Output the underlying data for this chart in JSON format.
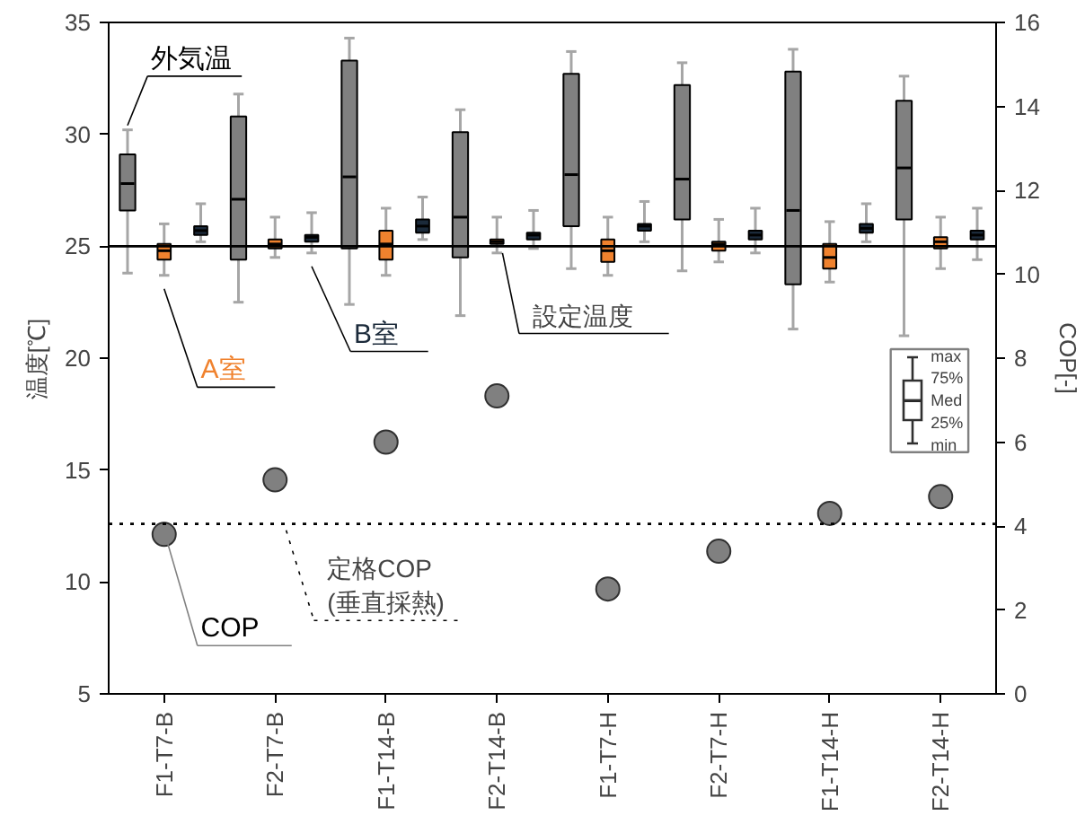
{
  "chart_data": {
    "type": "box",
    "ylabel": "温度[℃]",
    "y2label": "COP[-]",
    "categories": [
      "F1-T7-B",
      "F2-T7-B",
      "F1-T14-B",
      "F2-T14-B",
      "F1-T7-H",
      "F2-T7-H",
      "F1-T14-H",
      "F2-T14-H"
    ],
    "ylim": [
      5,
      35
    ],
    "yticks": [
      5,
      10,
      15,
      20,
      25,
      30,
      35
    ],
    "y2lim": [
      0,
      16
    ],
    "y2ticks": [
      0,
      2,
      4,
      6,
      8,
      10,
      12,
      14,
      16
    ],
    "grid": false,
    "series": [
      {
        "name": "外気温",
        "color": "#808080",
        "boxes": [
          {
            "low": 23.8,
            "q1": 26.6,
            "median": 27.8,
            "q3": 29.1,
            "high": 30.2
          },
          {
            "low": 22.5,
            "q1": 24.4,
            "median": 27.1,
            "q3": 30.8,
            "high": 31.8
          },
          {
            "low": 22.4,
            "q1": 24.9,
            "median": 28.1,
            "q3": 33.3,
            "high": 34.3
          },
          {
            "low": 21.9,
            "q1": 24.5,
            "median": 26.3,
            "q3": 30.1,
            "high": 31.1
          },
          {
            "low": 24.0,
            "q1": 25.9,
            "median": 28.2,
            "q3": 32.7,
            "high": 33.7
          },
          {
            "low": 23.9,
            "q1": 26.2,
            "median": 28.0,
            "q3": 32.2,
            "high": 33.2
          },
          {
            "low": 21.3,
            "q1": 23.3,
            "median": 26.6,
            "q3": 32.8,
            "high": 33.8
          },
          {
            "low": 21.0,
            "q1": 26.2,
            "median": 28.5,
            "q3": 31.5,
            "high": 32.6
          }
        ]
      },
      {
        "name": "A室",
        "color": "#f0822e",
        "boxes": [
          {
            "low": 23.7,
            "q1": 24.4,
            "median": 24.8,
            "q3": 25.1,
            "high": 26.0
          },
          {
            "low": 24.5,
            "q1": 24.9,
            "median": 25.1,
            "q3": 25.3,
            "high": 26.3
          },
          {
            "low": 23.7,
            "q1": 24.4,
            "median": 25.1,
            "q3": 25.7,
            "high": 26.7
          },
          {
            "low": 24.7,
            "q1": 25.1,
            "median": 25.2,
            "q3": 25.3,
            "high": 26.3
          },
          {
            "low": 23.7,
            "q1": 24.3,
            "median": 24.8,
            "q3": 25.3,
            "high": 26.3
          },
          {
            "low": 24.3,
            "q1": 24.8,
            "median": 25.1,
            "q3": 25.2,
            "high": 26.2
          },
          {
            "low": 23.4,
            "q1": 24.0,
            "median": 24.5,
            "q3": 25.1,
            "high": 26.1
          },
          {
            "low": 24.0,
            "q1": 24.9,
            "median": 25.2,
            "q3": 25.4,
            "high": 26.3
          }
        ]
      },
      {
        "name": "B室",
        "color": "#1b2a3a",
        "boxes": [
          {
            "low": 25.2,
            "q1": 25.5,
            "median": 25.7,
            "q3": 25.9,
            "high": 26.9
          },
          {
            "low": 24.7,
            "q1": 25.2,
            "median": 25.4,
            "q3": 25.5,
            "high": 26.5
          },
          {
            "low": 25.3,
            "q1": 25.6,
            "median": 25.9,
            "q3": 26.2,
            "high": 27.2
          },
          {
            "low": 24.9,
            "q1": 25.3,
            "median": 25.5,
            "q3": 25.6,
            "high": 26.6
          },
          {
            "low": 25.2,
            "q1": 25.7,
            "median": 25.9,
            "q3": 26.0,
            "high": 27.0
          },
          {
            "low": 24.7,
            "q1": 25.3,
            "median": 25.5,
            "q3": 25.7,
            "high": 26.7
          },
          {
            "low": 25.2,
            "q1": 25.6,
            "median": 25.8,
            "q3": 26.0,
            "high": 26.9
          },
          {
            "low": 24.4,
            "q1": 25.3,
            "median": 25.5,
            "q3": 25.7,
            "high": 26.7
          }
        ]
      },
      {
        "name": "COP",
        "type": "scatter",
        "axis": "y2",
        "marker": "circle",
        "color": "#808080",
        "values": [
          3.8,
          5.1,
          6.0,
          7.1,
          2.5,
          3.4,
          4.3,
          4.7
        ]
      }
    ],
    "ref_lines": [
      {
        "axis": "y",
        "value": 25,
        "label": "設定温度",
        "line_style": "solid",
        "color": "#000000"
      },
      {
        "axis": "y2",
        "value": 4.05,
        "label": "定格COP\n(垂直採熱)",
        "line_style": "dotted",
        "color": "#000000"
      }
    ],
    "annotations": [
      "max",
      "75%",
      "Med",
      "25%",
      "min"
    ]
  }
}
